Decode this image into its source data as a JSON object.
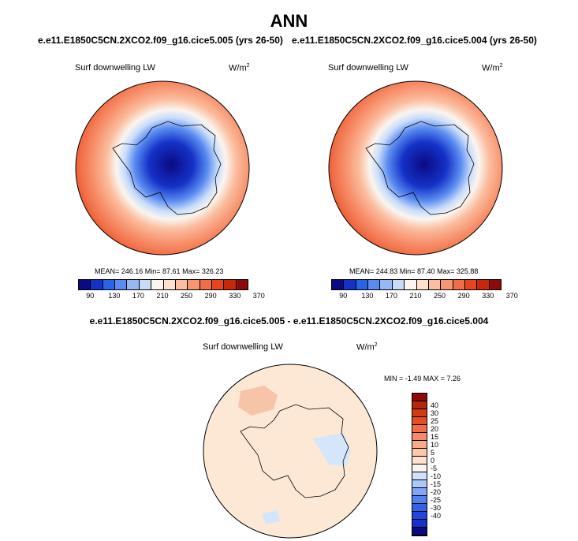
{
  "figure": {
    "title": "ANN",
    "diff_title": "e.e11.E1850C5CN.2XCO2.f09_g16.cice5.005 - e.e11.E1850C5CN.2XCO2.f09_g16.cice5.004"
  },
  "colors": {
    "scale14": [
      "#0a0a82",
      "#1432c8",
      "#2864e6",
      "#5a8cf0",
      "#96b9f5",
      "#c8dcfa",
      "#faf5ef",
      "#fde1cc",
      "#fbbea0",
      "#f89672",
      "#f06e46",
      "#e6461e",
      "#c8280a",
      "#8c0a0a"
    ],
    "scale18": [
      "#0a0a82",
      "#1432c8",
      "#2246dc",
      "#3264e6",
      "#5082f0",
      "#82a5f5",
      "#aac8fa",
      "#d2e1fa",
      "#faf5ef",
      "#fde1cc",
      "#fbc8aa",
      "#f9aa87",
      "#f68c64",
      "#f06e46",
      "#e6501e",
      "#d23c14",
      "#b4280a",
      "#8c0a0a"
    ],
    "land_outline": "#000000"
  },
  "chart_data": [
    {
      "type": "heatmap",
      "projection": "south polar stereographic",
      "run_title": "e.e11.E1850C5CN.2XCO2.f09_g16.cice5.005 (yrs 26-50)",
      "variable": "Surf downwelling LW",
      "units_base": "W/m",
      "units_exp": "2",
      "stats": {
        "mean": 246.16,
        "min": 87.61,
        "max": 326.23
      },
      "stats_text": "MEAN= 246.16  Min= 87.61  Max= 326.23",
      "colorbar": {
        "levels": [
          90,
          110,
          130,
          150,
          170,
          190,
          210,
          230,
          250,
          270,
          290,
          310,
          330,
          350,
          370
        ],
        "tick_labels": [
          "90",
          "130",
          "170",
          "210",
          "250",
          "290",
          "330",
          "370"
        ]
      }
    },
    {
      "type": "heatmap",
      "projection": "south polar stereographic",
      "run_title": "e.e11.E1850C5CN.2XCO2.f09_g16.cice5.004 (yrs 26-50)",
      "variable": "Surf downwelling LW",
      "units_base": "W/m",
      "units_exp": "2",
      "stats": {
        "mean": 244.83,
        "min": 87.4,
        "max": 325.88
      },
      "stats_text": "MEAN= 244.83  Min= 87.40  Max= 325.88",
      "colorbar": {
        "levels": [
          90,
          110,
          130,
          150,
          170,
          190,
          210,
          230,
          250,
          270,
          290,
          310,
          330,
          350,
          370
        ],
        "tick_labels": [
          "90",
          "130",
          "170",
          "210",
          "250",
          "290",
          "330",
          "370"
        ]
      }
    },
    {
      "type": "heatmap",
      "projection": "south polar stereographic",
      "run_title": "e.e11.E1850C5CN.2XCO2.f09_g16.cice5.005 - e.e11.E1850C5CN.2XCO2.f09_g16.cice5.004",
      "variable": "Surf downwelling LW",
      "units_base": "W/m",
      "units_exp": "2",
      "stats": {
        "min": -1.49,
        "max": 7.26
      },
      "stats_text": "MIN =  -1.49 MAX =   7.26",
      "colorbar": {
        "orientation": "vertical",
        "tick_labels": [
          "40",
          "30",
          "25",
          "20",
          "15",
          "10",
          "5",
          "0",
          "-5",
          "-10",
          "-15",
          "-20",
          "-25",
          "-30",
          "-40"
        ]
      }
    }
  ]
}
